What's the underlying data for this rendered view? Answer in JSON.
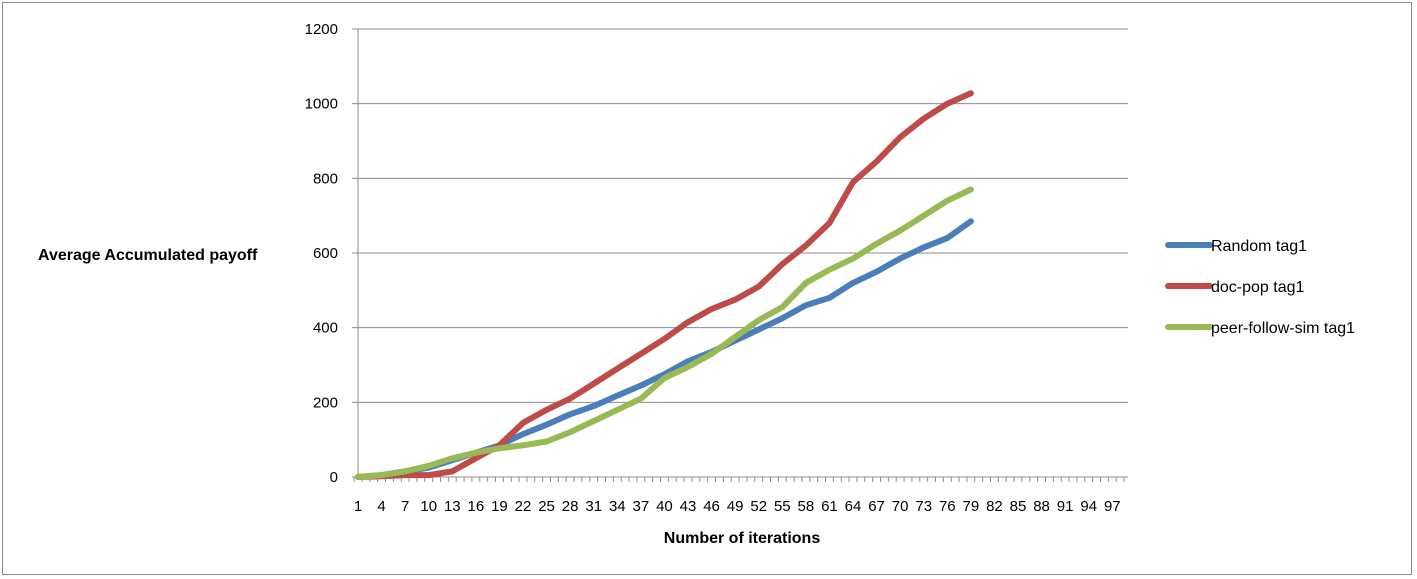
{
  "chart_data": {
    "type": "line",
    "title": "",
    "xlabel": "Number of iterations",
    "ylabel": "Average Accumulated payoff",
    "ylim": [
      0,
      1200
    ],
    "yticks": [
      0,
      200,
      400,
      600,
      800,
      1000,
      1200
    ],
    "xlim": [
      1,
      99
    ],
    "xtick_labels": [
      "1",
      "4",
      "7",
      "10",
      "13",
      "16",
      "19",
      "22",
      "25",
      "28",
      "31",
      "34",
      "37",
      "40",
      "43",
      "46",
      "49",
      "52",
      "55",
      "58",
      "61",
      "64",
      "67",
      "70",
      "73",
      "76",
      "79",
      "82",
      "85",
      "88",
      "91",
      "94",
      "97"
    ],
    "grid": "horizontal",
    "legend_position": "right",
    "series": [
      {
        "name": "Random tag1",
        "color": "#4a7ebb",
        "x": [
          1,
          4,
          7,
          10,
          13,
          16,
          19,
          22,
          25,
          28,
          31,
          34,
          37,
          40,
          43,
          46,
          49,
          52,
          55,
          58,
          61,
          64,
          67,
          70,
          73,
          76,
          79
        ],
        "values": [
          0,
          5,
          15,
          25,
          45,
          65,
          85,
          115,
          140,
          168,
          190,
          218,
          245,
          275,
          310,
          335,
          365,
          395,
          425,
          460,
          480,
          520,
          550,
          585,
          615,
          640,
          685
        ]
      },
      {
        "name": "doc-pop tag1",
        "color": "#be4b48",
        "x": [
          1,
          4,
          7,
          10,
          13,
          16,
          19,
          22,
          25,
          28,
          31,
          34,
          37,
          40,
          43,
          46,
          49,
          52,
          55,
          58,
          61,
          64,
          67,
          70,
          73,
          76,
          79
        ],
        "values": [
          0,
          2,
          5,
          5,
          15,
          50,
          85,
          145,
          180,
          210,
          250,
          290,
          330,
          370,
          415,
          450,
          475,
          510,
          570,
          620,
          680,
          790,
          845,
          910,
          960,
          1000,
          1028
        ]
      },
      {
        "name": "peer-follow-sim tag1",
        "color": "#98b954",
        "x": [
          1,
          4,
          7,
          10,
          13,
          16,
          19,
          22,
          25,
          28,
          31,
          34,
          37,
          40,
          43,
          46,
          49,
          52,
          55,
          58,
          61,
          64,
          67,
          70,
          73,
          76,
          79
        ],
        "values": [
          0,
          5,
          15,
          30,
          50,
          65,
          77,
          85,
          95,
          120,
          150,
          180,
          210,
          265,
          295,
          330,
          375,
          420,
          455,
          520,
          555,
          585,
          625,
          660,
          700,
          740,
          770
        ]
      }
    ]
  }
}
